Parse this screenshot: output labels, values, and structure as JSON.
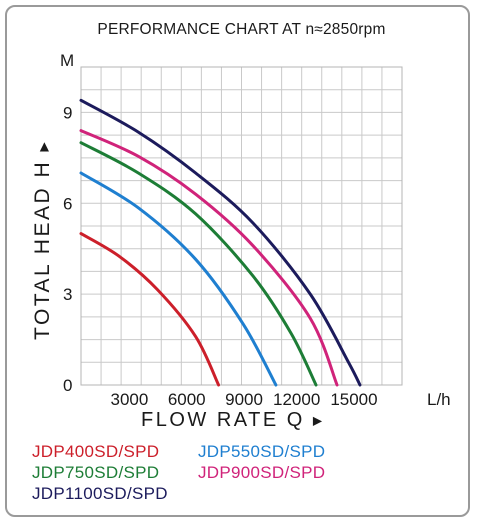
{
  "chart_data": {
    "type": "line",
    "title": "PERFORMANCE CHART AT n≈2850rpm",
    "ylabel": "TOTAL HEAD H",
    "xlabel": "FLOW RATE Q",
    "y_unit": "M",
    "x_unit": "L/h",
    "ylim": [
      0,
      10.5
    ],
    "xlim": [
      0,
      16800
    ],
    "y_ticks": [
      0,
      3,
      6,
      9
    ],
    "x_ticks": [
      3000,
      6000,
      9000,
      12000,
      15000
    ],
    "x_tick_labels": [
      "3000",
      "6000",
      "9000",
      "12000",
      "15000"
    ],
    "y_tick_labels": [
      "0",
      "3",
      "6",
      "9"
    ],
    "grid": true,
    "legend_position": "bottom",
    "series": [
      {
        "name": "JDP400SD/SPD",
        "color": "#cc1f2a",
        "points": [
          [
            0,
            5.0
          ],
          [
            2000,
            4.25
          ],
          [
            4000,
            3.15
          ],
          [
            6000,
            1.6
          ],
          [
            7200,
            0
          ]
        ]
      },
      {
        "name": "JDP550SD/SPD",
        "color": "#1f7fd0",
        "points": [
          [
            0,
            7.0
          ],
          [
            3000,
            5.85
          ],
          [
            6000,
            4.15
          ],
          [
            8500,
            2.0
          ],
          [
            10200,
            0
          ]
        ]
      },
      {
        "name": "JDP750SD/SPD",
        "color": "#1d7d36",
        "points": [
          [
            0,
            8.0
          ],
          [
            3000,
            7.0
          ],
          [
            6000,
            5.65
          ],
          [
            9000,
            3.6
          ],
          [
            11000,
            1.7
          ],
          [
            12300,
            0
          ]
        ]
      },
      {
        "name": "JDP900SD/SPD",
        "color": "#d0237a",
        "points": [
          [
            0,
            8.4
          ],
          [
            3000,
            7.55
          ],
          [
            6000,
            6.3
          ],
          [
            9000,
            4.6
          ],
          [
            12000,
            2.2
          ],
          [
            13400,
            0
          ]
        ]
      },
      {
        "name": "JDP1100SD/SPD",
        "color": "#1c1b5c",
        "points": [
          [
            0,
            9.4
          ],
          [
            3000,
            8.35
          ],
          [
            6000,
            7.0
          ],
          [
            9000,
            5.35
          ],
          [
            12000,
            3.0
          ],
          [
            14000,
            0.75
          ],
          [
            14600,
            0
          ]
        ]
      }
    ]
  }
}
